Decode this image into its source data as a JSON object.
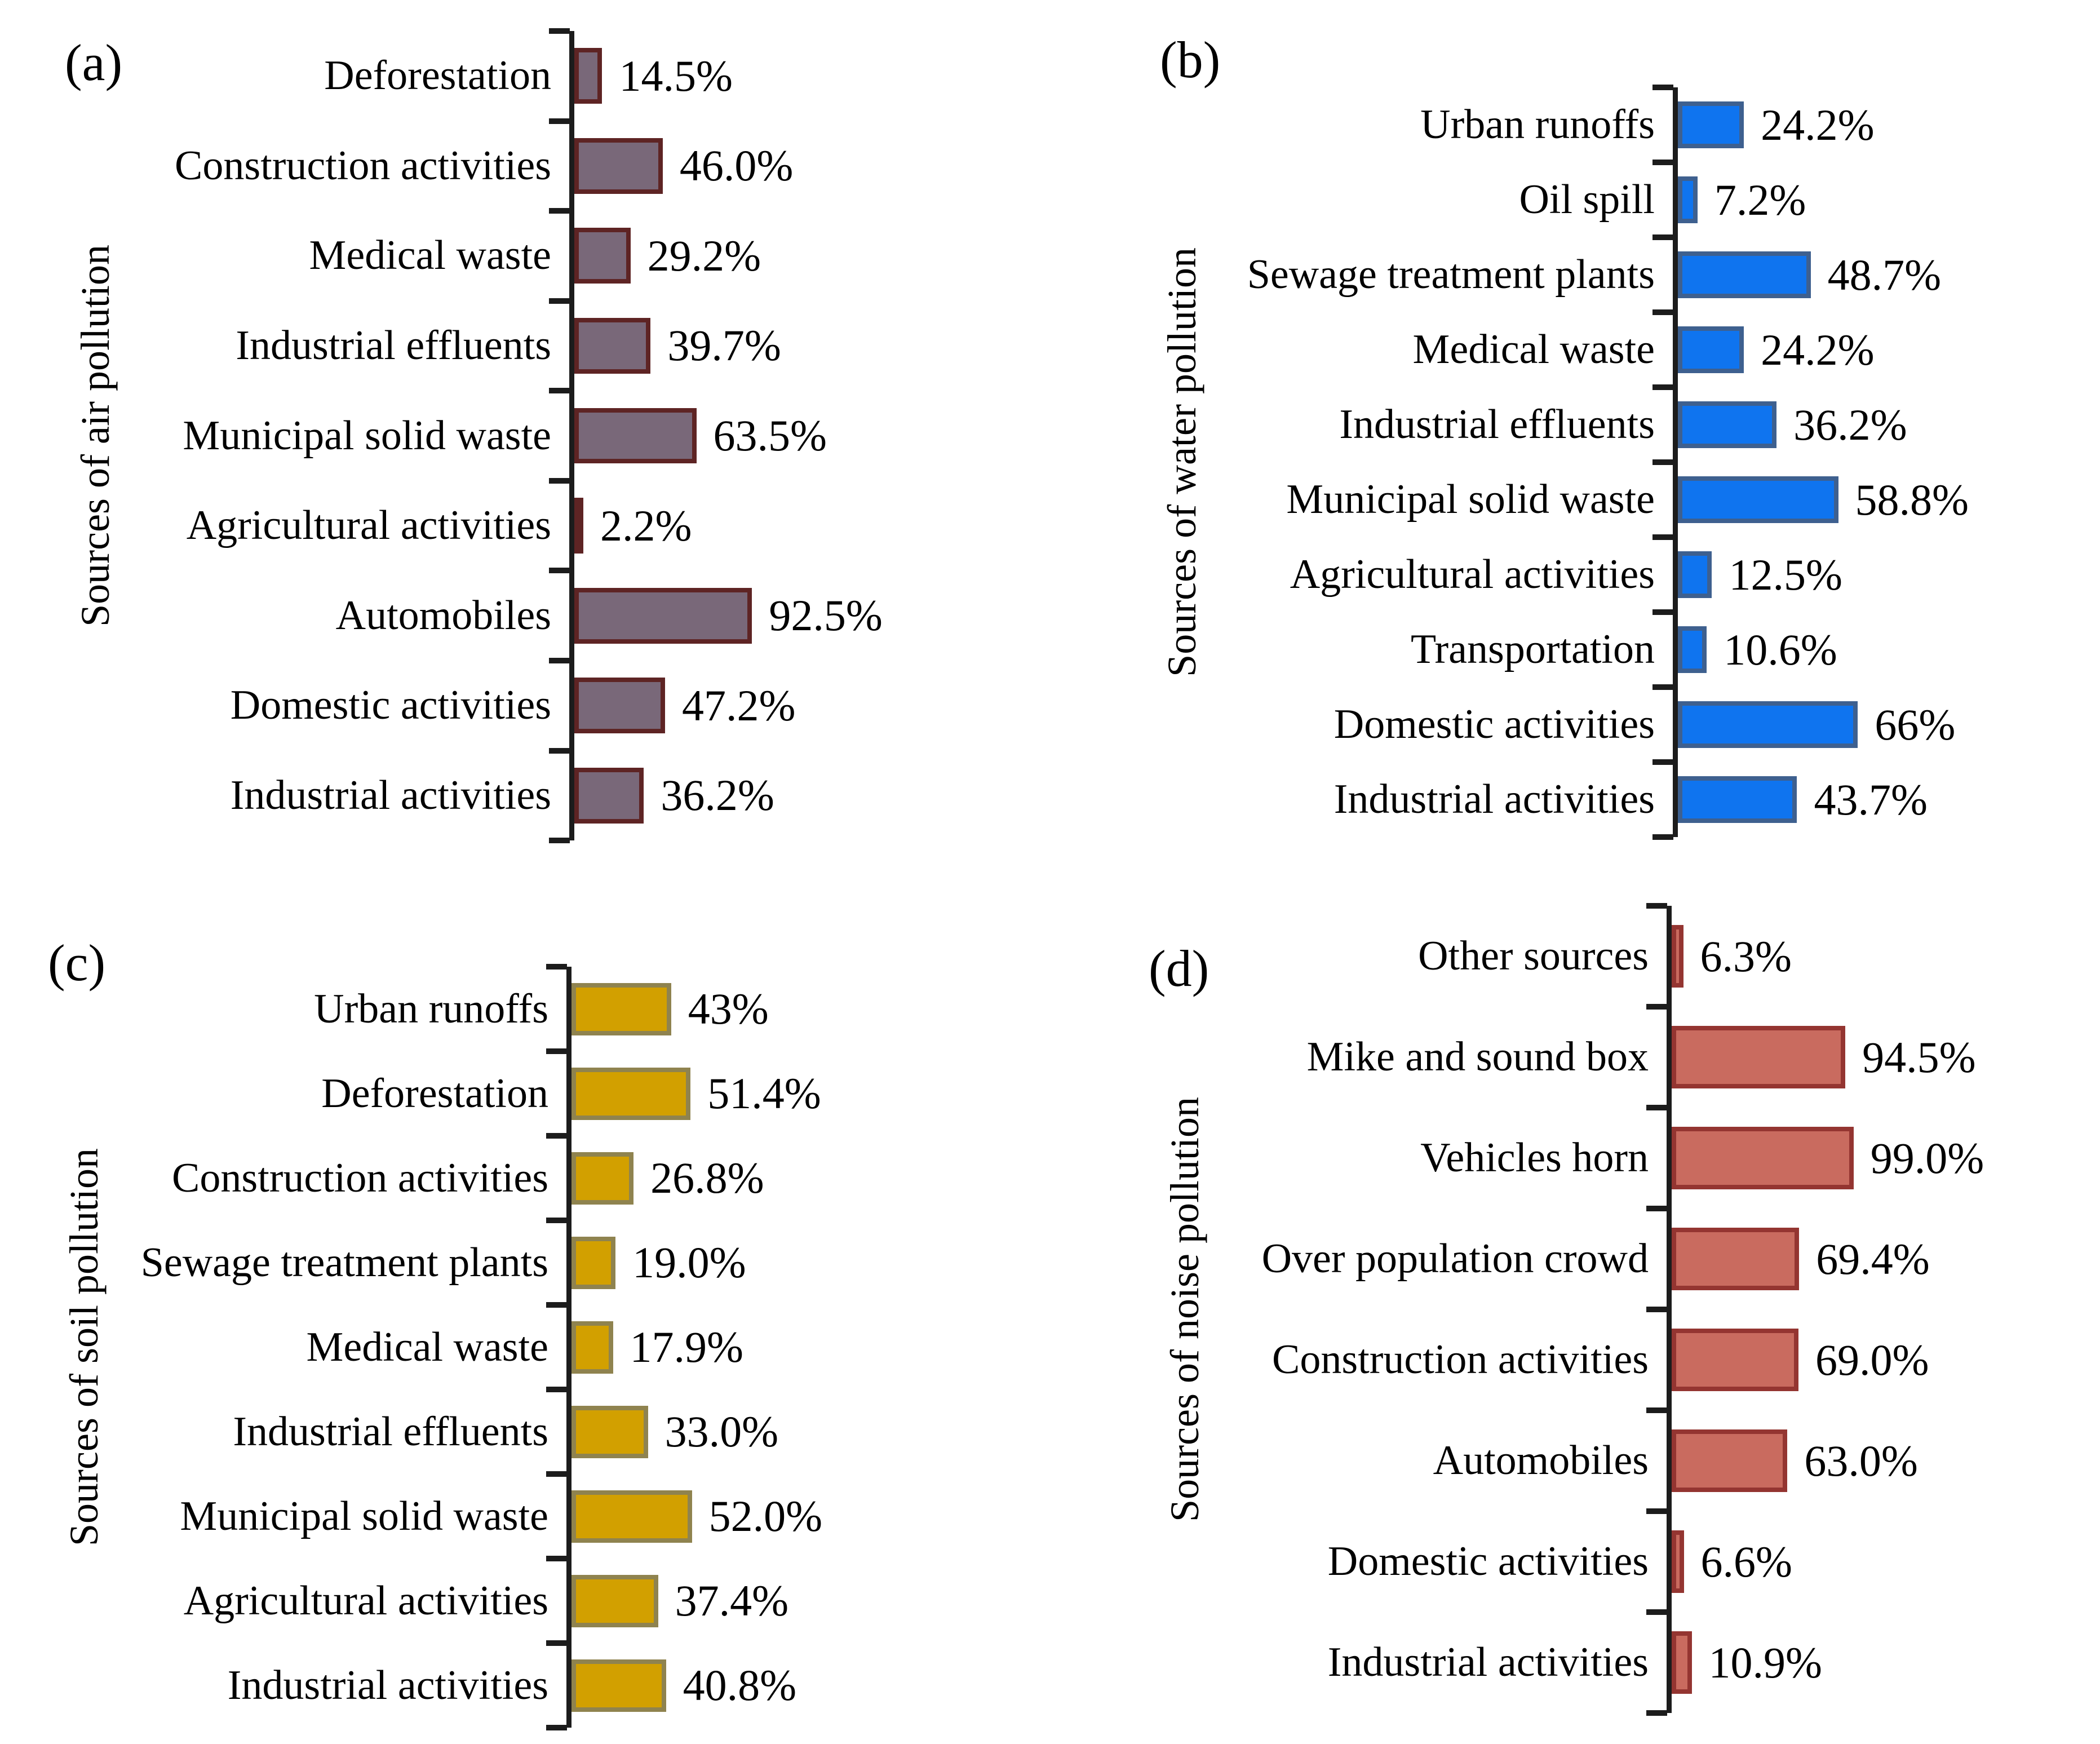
{
  "colors": {
    "background": "#FFFFFF",
    "axis": "#1C1C1C",
    "text": "#000000"
  },
  "chart_data": [
    {
      "type": "bar",
      "orientation": "horizontal",
      "panel_label": "(a)",
      "ylabel": "Sources of air pollution",
      "categories": [
        "Deforestation",
        "Construction activities",
        "Medical waste",
        "Industrial effluents",
        "Municipal solid waste",
        "Agricultural activities",
        "Automobiles",
        "Domestic activities",
        "Industrial activities"
      ],
      "values": [
        14.5,
        46.0,
        29.2,
        39.7,
        63.5,
        2.2,
        92.5,
        47.2,
        36.2
      ],
      "value_labels": [
        "14.5%",
        "46.0%",
        "29.2%",
        "39.7%",
        "63.5%",
        "2.2%",
        "92.5%",
        "47.2%",
        "36.2%"
      ],
      "bar_fill": "#796879",
      "bar_border": "#5E2424",
      "xlim": [
        0,
        100
      ],
      "grid": false,
      "legend": "none"
    },
    {
      "type": "bar",
      "orientation": "horizontal",
      "panel_label": "(b)",
      "ylabel": "Sources of water pollution",
      "categories": [
        "Urban runoffs",
        "Oil spill",
        "Sewage treatment plants",
        "Medical waste",
        "Industrial effluents",
        "Municipal solid waste",
        "Agricultural activities",
        "Transportation",
        "Domestic activities",
        "Industrial activities"
      ],
      "values": [
        24.2,
        7.2,
        48.7,
        24.2,
        36.2,
        58.8,
        12.5,
        10.6,
        66,
        43.7
      ],
      "value_labels": [
        "24.2%",
        "7.2%",
        "48.7%",
        "24.2%",
        "36.2%",
        "58.8%",
        "12.5%",
        "10.6%",
        "66%",
        "43.7%"
      ],
      "bar_fill": "#0F74EF",
      "bar_border": "#3E608F",
      "xlim": [
        0,
        100
      ],
      "grid": false,
      "legend": "none"
    },
    {
      "type": "bar",
      "orientation": "horizontal",
      "panel_label": "(c)",
      "ylabel": "Sources of soil pollution",
      "categories": [
        "Urban runoffs",
        "Deforestation",
        "Construction activities",
        "Sewage treatment plants",
        "Medical waste",
        "Industrial effluents",
        "Municipal solid waste",
        "Agricultural activities",
        "Industrial activities"
      ],
      "values": [
        43,
        51.4,
        26.8,
        19.0,
        17.9,
        33.0,
        52.0,
        37.4,
        40.8
      ],
      "value_labels": [
        "43%",
        "51.4%",
        "26.8%",
        "19.0%",
        "17.9%",
        "33.0%",
        "52.0%",
        "37.4%",
        "40.8%"
      ],
      "bar_fill": "#D2A000",
      "bar_border": "#8F834F",
      "xlim": [
        0,
        100
      ],
      "grid": false,
      "legend": "none"
    },
    {
      "type": "bar",
      "orientation": "horizontal",
      "panel_label": "(d)",
      "ylabel": "Sources of noise pollution",
      "categories": [
        "Other sources",
        "Mike and sound box",
        "Vehicles horn",
        "Over population crowd",
        "Construction activities",
        "Automobiles",
        "Domestic activities",
        "Industrial activities"
      ],
      "values": [
        6.3,
        94.5,
        99.0,
        69.4,
        69.0,
        63.0,
        6.6,
        10.9
      ],
      "value_labels": [
        "6.3%",
        "94.5%",
        "99.0%",
        "69.4%",
        "69.0%",
        "63.0%",
        "6.6%",
        "10.9%"
      ],
      "bar_fill": "#C96B5F",
      "bar_border": "#943531",
      "xlim": [
        0,
        100
      ],
      "grid": false,
      "legend": "none"
    }
  ]
}
